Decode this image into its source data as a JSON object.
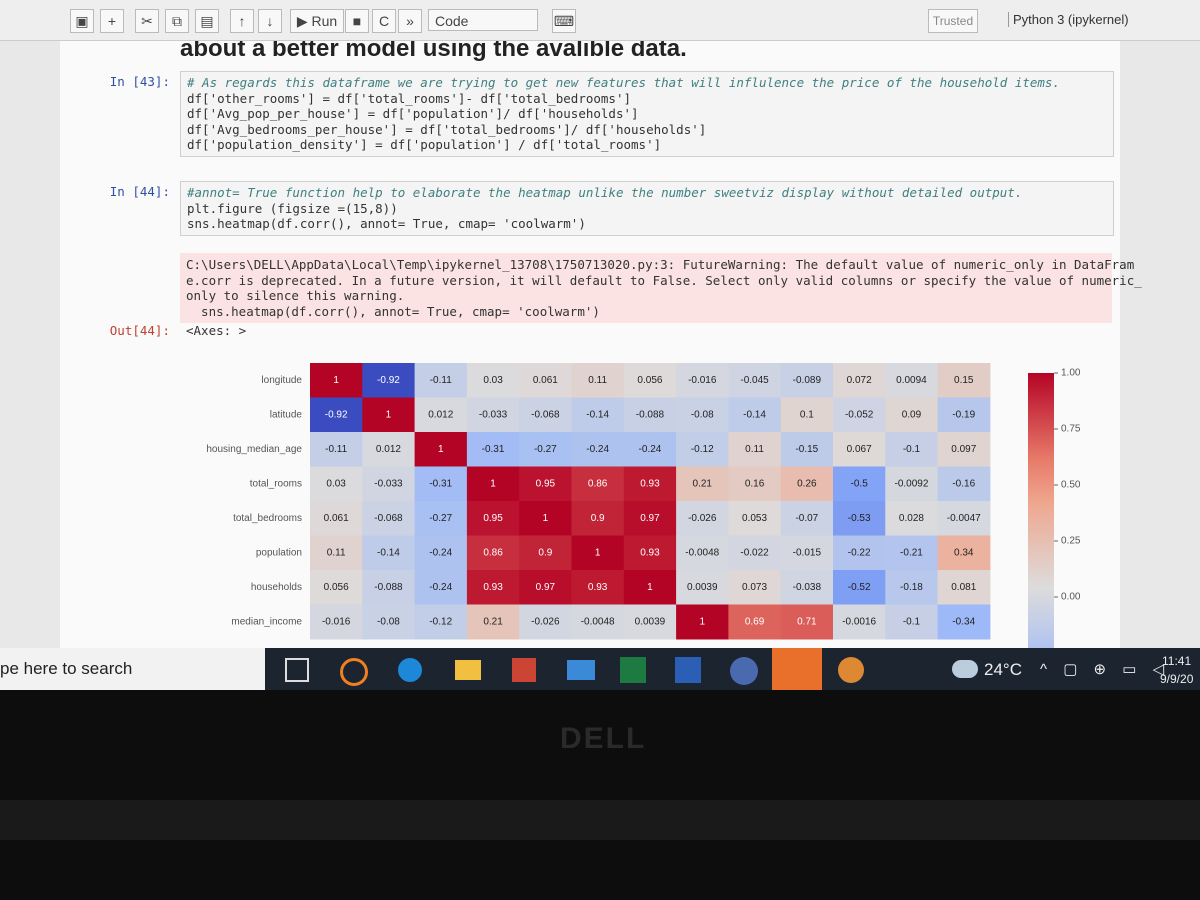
{
  "toolbar": {
    "run": "Run",
    "cell_type": "Code",
    "trusted": "Trusted",
    "kernel": "Python 3 (ipykernel)"
  },
  "notebook": {
    "heading": "about a better model using the avalible data.",
    "cells": [
      {
        "prompt": "In [43]:",
        "lines": [
          "# As regards this dataframe we are trying to get new features that will influlence the price of the household items.",
          "df['other_rooms'] = df['total_rooms']- df['total_bedrooms']",
          "df['Avg_pop_per_house'] = df['population']/ df['households']",
          "df['Avg_bedrooms_per_house'] = df['total_bedrooms']/ df['households']",
          "df['population_density'] = df['population'] / df['total_rooms']"
        ]
      },
      {
        "prompt": "In [44]:",
        "lines": [
          "#annot= True function help to elaborate the heatmap unlike the number sweetviz display without detailed output.",
          "plt.figure (figsize =(15,8))",
          "sns.heatmap(df.corr(), annot= True, cmap= 'coolwarm')"
        ]
      }
    ],
    "warning": [
      "C:\\Users\\DELL\\AppData\\Local\\Temp\\ipykernel_13708\\1750713020.py:3: FutureWarning: The default value of numeric_only in DataFram",
      "e.corr is deprecated. In a future version, it will default to False. Select only valid columns or specify the value of numeric_",
      "only to silence this warning.",
      "  sns.heatmap(df.corr(), annot= True, cmap= 'coolwarm')"
    ],
    "out_prompt": "Out[44]:",
    "out_text": "<Axes: >"
  },
  "chart_data": {
    "type": "heatmap",
    "rows": [
      "longitude",
      "latitude",
      "housing_median_age",
      "total_rooms",
      "total_bedrooms",
      "population",
      "households",
      "median_income"
    ],
    "values": [
      [
        1,
        -0.92,
        -0.11,
        0.03,
        0.061,
        0.11,
        0.056,
        -0.016,
        -0.045,
        -0.089,
        0.072,
        0.0094,
        0.15
      ],
      [
        -0.92,
        1,
        0.012,
        -0.033,
        -0.068,
        -0.14,
        -0.088,
        -0.08,
        -0.14,
        0.1,
        -0.052,
        0.09,
        -0.19
      ],
      [
        -0.11,
        0.012,
        1,
        -0.31,
        -0.27,
        -0.24,
        -0.24,
        -0.12,
        0.11,
        -0.15,
        0.067,
        -0.1,
        0.097
      ],
      [
        0.03,
        -0.033,
        -0.31,
        1,
        0.95,
        0.86,
        0.93,
        0.21,
        0.16,
        0.26,
        -0.5,
        -0.0092,
        -0.16
      ],
      [
        0.061,
        -0.068,
        -0.27,
        0.95,
        1,
        0.9,
        0.97,
        -0.026,
        0.053,
        -0.07,
        -0.53,
        0.028,
        -0.0047
      ],
      [
        0.11,
        -0.14,
        -0.24,
        0.86,
        0.9,
        1,
        0.93,
        -0.0048,
        -0.022,
        -0.015,
        -0.22,
        -0.21,
        0.34
      ],
      [
        0.056,
        -0.088,
        -0.24,
        0.93,
        0.97,
        0.93,
        1,
        0.0039,
        0.073,
        -0.038,
        -0.52,
        -0.18,
        0.081
      ],
      [
        -0.016,
        -0.08,
        -0.12,
        0.21,
        -0.026,
        -0.0048,
        0.0039,
        1,
        0.69,
        0.71,
        -0.0016,
        -0.1,
        -0.34
      ]
    ],
    "colormap": "coolwarm",
    "cticks": [
      {
        "value": 1,
        "label": "1.00"
      },
      {
        "value": 0.75,
        "label": "0.75"
      },
      {
        "value": 0.5,
        "label": "0.50"
      },
      {
        "value": 0.25,
        "label": "0.25"
      },
      {
        "value": 0,
        "label": "0.00"
      }
    ]
  },
  "taskbar": {
    "search": "pe here to search",
    "weather": "24°C",
    "time": "11:41",
    "date": "9/9/20"
  },
  "bezel": {
    "logo": "DELL"
  }
}
